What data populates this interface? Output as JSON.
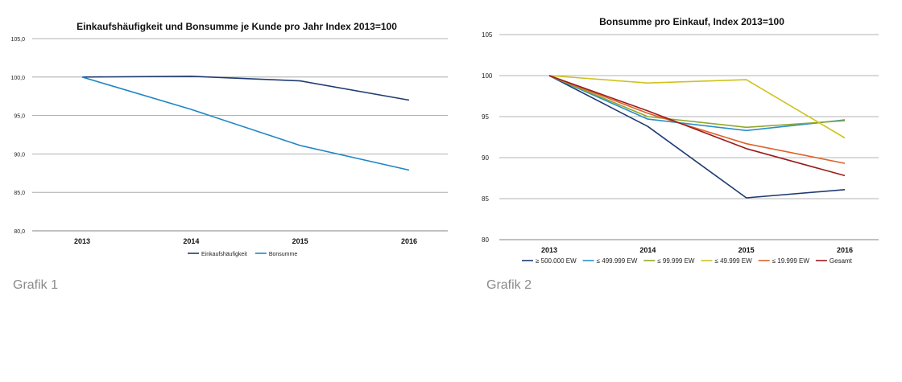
{
  "captions": {
    "chart1": "Grafik 1",
    "chart2": "Grafik 2"
  },
  "chart_data": [
    {
      "type": "line",
      "title": "Einkaufshäufigkeit und Bonsumme je Kunde pro Jahr Index 2013=100",
      "x": [
        "2013",
        "2014",
        "2015",
        "2016"
      ],
      "ylim": [
        80,
        105
      ],
      "yticks": [
        "80,0",
        "85,0",
        "90,0",
        "95,0",
        "100,0",
        "105,0"
      ],
      "grid": true,
      "legend": "bottom",
      "series": [
        {
          "name": "Einkaufshäufigkeit",
          "color": "#1f3b73",
          "values": [
            100,
            100.1,
            99.5,
            97
          ]
        },
        {
          "name": "Bonsumme",
          "color": "#1f86c6",
          "values": [
            100,
            95.8,
            91.1,
            87.9
          ]
        }
      ]
    },
    {
      "type": "line",
      "title": "Bonsumme pro Einkauf, Index 2013=100",
      "x": [
        "2013",
        "2014",
        "2015",
        "2016"
      ],
      "ylim": [
        80,
        105
      ],
      "yticks": [
        "80",
        "85",
        "90",
        "95",
        "100",
        "105"
      ],
      "grid": true,
      "legend": "bottom",
      "series": [
        {
          "name": "≥ 500.000 EW",
          "color": "#1f3b73",
          "values": [
            100,
            93.8,
            85.1,
            86.1
          ]
        },
        {
          "name": "≤ 499.999 EW",
          "color": "#2b8fc8",
          "values": [
            100,
            94.7,
            93.3,
            94.6
          ]
        },
        {
          "name": "≤ 99.999 EW",
          "color": "#8fa82a",
          "values": [
            100,
            95,
            93.7,
            94.5
          ]
        },
        {
          "name": "≤ 49.999 EW",
          "color": "#cfc21e",
          "values": [
            100,
            99.1,
            99.5,
            92.4
          ]
        },
        {
          "name": "≤ 19.999 EW",
          "color": "#e0612a",
          "values": [
            100,
            95.4,
            91.7,
            89.3
          ]
        },
        {
          "name": "Gesamt",
          "color": "#9b1b1b",
          "values": [
            100,
            95.7,
            91.1,
            87.8
          ]
        }
      ]
    }
  ]
}
